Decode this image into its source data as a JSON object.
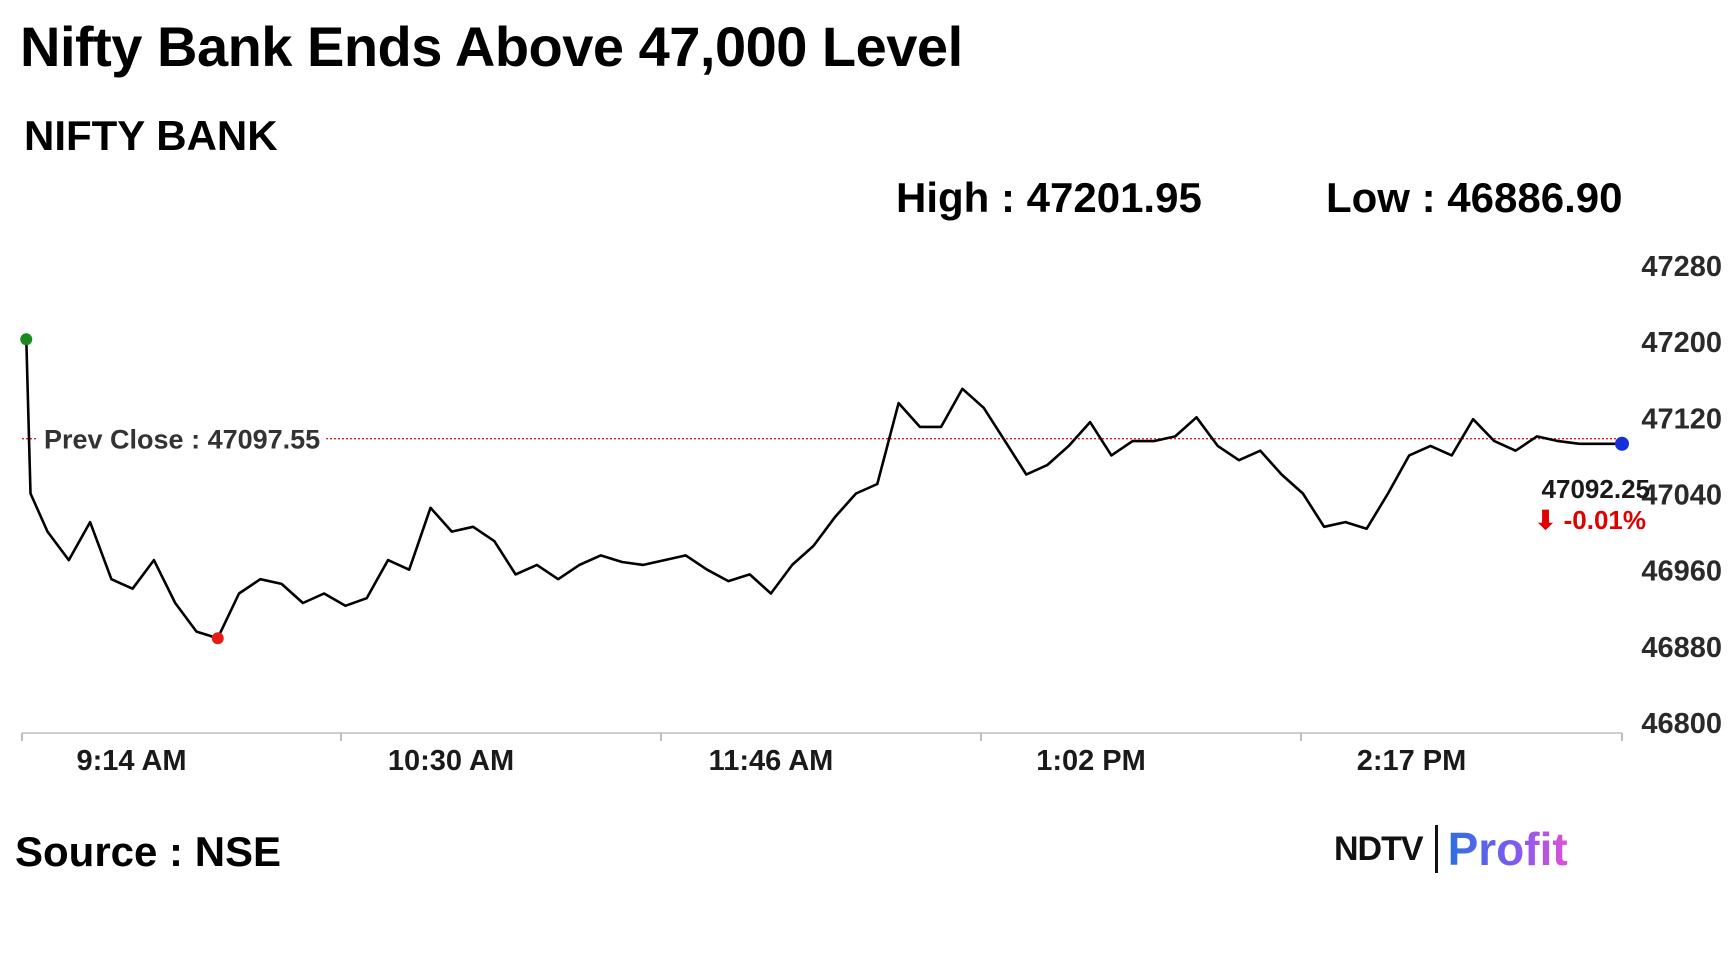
{
  "headline": "Nifty Bank Ends Above 47,000 Level",
  "subtitle": "NIFTY BANK",
  "stats": {
    "high": "High : 47201.95",
    "low": "Low : 46886.90"
  },
  "source": "Source : NSE",
  "logo": {
    "ndtv": "NDTV",
    "profit": "Profit"
  },
  "colors": {
    "line": "#000000",
    "prev_close_line": "#e02020",
    "open_dot": "#1a8a1a",
    "low_dot": "#e81b1b",
    "last_dot": "#1530d8",
    "change": "#e00000"
  },
  "chart_data": {
    "type": "line",
    "title": "",
    "xlabel": "",
    "ylabel": "",
    "ylim": [
      46800,
      47280
    ],
    "y_ticks": [
      47280,
      47200,
      47120,
      47040,
      46960,
      46880,
      46800
    ],
    "x_tick_labels": [
      "9:14 AM",
      "10:30 AM",
      "11:46 AM",
      "1:02 PM",
      "2:17 PM"
    ],
    "x": [
      "9:15",
      "9:16",
      "9:20",
      "9:25",
      "9:30",
      "9:35",
      "9:40",
      "9:45",
      "9:50",
      "9:55",
      "10:00",
      "10:05",
      "10:10",
      "10:15",
      "10:20",
      "10:25",
      "10:30",
      "10:35",
      "10:40",
      "10:45",
      "10:50",
      "10:55",
      "11:00",
      "11:05",
      "11:10",
      "11:15",
      "11:20",
      "11:25",
      "11:30",
      "11:35",
      "11:40",
      "11:45",
      "11:50",
      "11:55",
      "12:00",
      "12:05",
      "12:10",
      "12:15",
      "12:20",
      "12:25",
      "12:30",
      "12:35",
      "12:40",
      "12:45",
      "12:50",
      "12:55",
      "13:00",
      "13:05",
      "13:10",
      "13:15",
      "13:20",
      "13:25",
      "13:30",
      "13:35",
      "13:40",
      "13:45",
      "13:50",
      "13:55",
      "14:00",
      "14:05",
      "14:10",
      "14:15",
      "14:20",
      "14:25",
      "14:30",
      "14:35",
      "14:40",
      "14:45",
      "14:50",
      "14:55",
      "15:00",
      "15:05",
      "15:10",
      "15:15",
      "15:20",
      "15:25",
      "15:30"
    ],
    "series": [
      {
        "values": [
          47201.95,
          47040,
          47000,
          46970,
          47010,
          46950,
          46940,
          46970,
          46925,
          46895,
          46888,
          46935,
          46950,
          46945,
          46925,
          46935,
          46922,
          46930,
          46970,
          46960,
          47025,
          47000,
          47005,
          46990,
          46955,
          46965,
          46950,
          46965,
          46975,
          46968,
          46965,
          46970,
          46975,
          46960,
          46948,
          46955,
          46935,
          46965,
          46985,
          47015,
          47040,
          47050,
          47135,
          47110,
          47110,
          47150,
          47130,
          47095,
          47060,
          47070,
          47090,
          47115,
          47080,
          47095,
          47095,
          47100,
          47120,
          47090,
          47075,
          47085,
          47060,
          47040,
          47005,
          47010,
          47003,
          47040,
          47080,
          47090,
          47080,
          47118,
          47095,
          47085,
          47100,
          47095,
          47092.25,
          47092.25,
          47092.25
        ]
      }
    ],
    "prev_close_label": "Prev Close : 47097.55",
    "prev_close": 47097.55,
    "last_value_label": "47092.25",
    "change_label": "⬇ -0.01%",
    "legend": "none",
    "grid": false
  }
}
